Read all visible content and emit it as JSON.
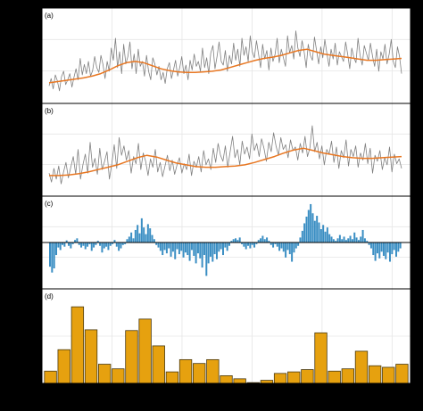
{
  "chart_data": [
    {
      "type": "line",
      "panel_label": "(a)",
      "title": "",
      "xlabel": "",
      "ylabel": "",
      "grid": true,
      "series": [
        {
          "color": "#808080",
          "values": [
            0.1,
            0.22,
            0.05,
            0.28,
            0.18,
            0.02,
            0.25,
            0.34,
            0.12,
            0.2,
            0.3,
            0.08,
            0.24,
            0.38,
            0.2,
            0.55,
            0.28,
            0.45,
            0.3,
            0.5,
            0.26,
            0.35,
            0.58,
            0.4,
            0.32,
            0.6,
            0.45,
            0.22,
            0.5,
            0.34,
            0.72,
            0.52,
            0.88,
            0.4,
            0.66,
            0.3,
            0.78,
            0.46,
            0.58,
            0.82,
            0.38,
            0.62,
            0.3,
            0.7,
            0.42,
            0.5,
            0.26,
            0.6,
            0.34,
            0.2,
            0.56,
            0.46,
            0.28,
            0.42,
            0.2,
            0.32,
            0.14,
            0.38,
            0.48,
            0.22,
            0.36,
            0.52,
            0.26,
            0.4,
            0.58,
            0.3,
            0.44,
            0.2,
            0.52,
            0.36,
            0.62,
            0.42,
            0.5,
            0.34,
            0.72,
            0.4,
            0.56,
            0.3,
            0.64,
            0.76,
            0.38,
            0.58,
            0.82,
            0.5,
            0.44,
            0.68,
            0.34,
            0.6,
            0.46,
            0.8,
            0.52,
            0.7,
            0.42,
            0.88,
            0.6,
            0.74,
            0.5,
            0.92,
            0.66,
            0.56,
            0.84,
            0.62,
            0.4,
            0.78,
            0.54,
            0.68,
            0.36,
            0.72,
            0.5,
            0.62,
            0.88,
            0.48,
            0.7,
            0.56,
            0.42,
            0.92,
            0.64,
            0.76,
            0.54,
            1.0,
            0.72,
            0.58,
            0.84,
            0.66,
            0.4,
            0.78,
            0.6,
            0.52,
            0.9,
            0.68,
            0.46,
            0.74,
            0.56,
            0.86,
            0.62,
            0.42,
            0.7,
            0.54,
            0.8,
            0.44,
            0.66,
            0.58,
            0.5,
            0.82,
            0.62,
            0.38,
            0.72,
            0.56,
            0.48,
            0.88,
            0.6,
            0.44,
            0.76,
            0.64,
            0.52,
            0.8,
            0.58,
            0.42,
            0.7,
            0.34,
            0.66,
            0.54,
            0.78,
            0.46,
            0.62,
            0.86,
            0.5,
            0.4,
            0.74,
            0.58,
            0.3
          ]
        },
        {
          "color": "#e87722",
          "values": [
            0.15,
            0.17,
            0.19,
            0.21,
            0.23,
            0.26,
            0.3,
            0.36,
            0.43,
            0.48,
            0.5,
            0.48,
            0.43,
            0.38,
            0.35,
            0.33,
            0.32,
            0.32,
            0.33,
            0.34,
            0.36,
            0.4,
            0.44,
            0.48,
            0.52,
            0.55,
            0.57,
            0.6,
            0.64,
            0.68,
            0.7,
            0.66,
            0.62,
            0.6,
            0.58,
            0.56,
            0.54,
            0.52,
            0.52,
            0.53,
            0.54,
            0.55
          ]
        }
      ]
    },
    {
      "type": "line",
      "panel_label": "(b)",
      "title": "",
      "xlabel": "",
      "ylabel": "",
      "grid": true,
      "series": [
        {
          "color": "#808080",
          "values": [
            0.2,
            0.05,
            0.28,
            0.1,
            0.32,
            0.02,
            0.22,
            0.38,
            0.12,
            0.3,
            0.48,
            0.18,
            0.6,
            0.1,
            0.34,
            0.52,
            0.2,
            0.72,
            0.3,
            0.45,
            0.18,
            0.62,
            0.26,
            0.4,
            0.56,
            0.1,
            0.36,
            0.68,
            0.28,
            0.8,
            0.5,
            0.66,
            0.42,
            0.58,
            0.2,
            0.48,
            0.36,
            0.7,
            0.26,
            0.54,
            0.4,
            0.16,
            0.44,
            0.3,
            0.6,
            0.22,
            0.38,
            0.14,
            0.32,
            0.5,
            0.24,
            0.42,
            0.18,
            0.34,
            0.46,
            0.2,
            0.36,
            0.26,
            0.52,
            0.16,
            0.4,
            0.3,
            0.48,
            0.22,
            0.58,
            0.34,
            0.44,
            0.26,
            0.62,
            0.38,
            0.7,
            0.5,
            0.4,
            0.66,
            0.3,
            0.56,
            0.82,
            0.46,
            0.6,
            0.34,
            0.74,
            0.52,
            0.64,
            0.44,
            0.86,
            0.58,
            0.7,
            0.48,
            0.78,
            0.62,
            0.4,
            0.72,
            0.56,
            0.88,
            0.66,
            0.5,
            0.8,
            0.6,
            0.68,
            0.46,
            0.76,
            0.58,
            0.64,
            0.42,
            0.7,
            0.54,
            0.82,
            0.48,
            0.62,
            1.0,
            0.56,
            0.72,
            0.44,
            0.66,
            0.34,
            0.6,
            0.52,
            0.74,
            0.38,
            0.64,
            0.28,
            0.58,
            0.46,
            0.76,
            0.32,
            0.6,
            0.48,
            0.66,
            0.3,
            0.54,
            0.42,
            0.7,
            0.36,
            0.62,
            0.2,
            0.5,
            0.4,
            0.58,
            0.26,
            0.46,
            0.34,
            0.64,
            0.22,
            0.52,
            0.36,
            0.44,
            0.28
          ]
        },
        {
          "color": "#e87722",
          "values": [
            0.16,
            0.16,
            0.17,
            0.19,
            0.22,
            0.26,
            0.3,
            0.34,
            0.4,
            0.46,
            0.5,
            0.47,
            0.42,
            0.37,
            0.34,
            0.31,
            0.3,
            0.3,
            0.31,
            0.32,
            0.34,
            0.38,
            0.43,
            0.48,
            0.54,
            0.59,
            0.62,
            0.58,
            0.54,
            0.51,
            0.48,
            0.46,
            0.45,
            0.45,
            0.46,
            0.47,
            0.48
          ]
        }
      ]
    },
    {
      "type": "bar",
      "panel_label": "(c)",
      "title": "",
      "xlabel": "",
      "ylabel": "",
      "grid": true,
      "color": "#3a8ec3",
      "baseline": 0,
      "values": [
        -0.58,
        -0.72,
        -0.62,
        -0.3,
        -0.12,
        -0.18,
        -0.06,
        -0.1,
        0.05,
        -0.08,
        -0.14,
        -0.04,
        0.06,
        0.1,
        -0.06,
        -0.12,
        -0.08,
        -0.16,
        -0.1,
        -0.04,
        -0.2,
        -0.12,
        -0.06,
        0.04,
        -0.08,
        -0.24,
        -0.14,
        -0.1,
        -0.18,
        -0.08,
        -0.04,
        0.06,
        -0.1,
        -0.2,
        -0.14,
        -0.06,
        -0.04,
        0.08,
        0.14,
        0.24,
        0.1,
        0.3,
        0.42,
        0.22,
        0.58,
        0.36,
        0.2,
        0.44,
        0.34,
        0.18,
        0.08,
        -0.06,
        -0.12,
        -0.2,
        -0.3,
        -0.18,
        -0.26,
        -0.14,
        -0.34,
        -0.22,
        -0.4,
        -0.16,
        -0.28,
        -0.2,
        -0.36,
        -0.24,
        -0.3,
        -0.44,
        -0.18,
        -0.32,
        -0.5,
        -0.26,
        -0.38,
        -0.6,
        -0.3,
        -0.8,
        -0.5,
        -0.34,
        -0.46,
        -0.28,
        -0.4,
        -0.22,
        -0.16,
        -0.3,
        -0.12,
        -0.2,
        -0.08,
        0.04,
        0.08,
        0.1,
        0.06,
        0.12,
        -0.04,
        -0.1,
        -0.16,
        -0.08,
        -0.14,
        -0.06,
        -0.12,
        -0.04,
        0.06,
        0.1,
        0.16,
        0.08,
        0.12,
        0.04,
        -0.06,
        -0.12,
        -0.04,
        -0.1,
        -0.2,
        -0.14,
        -0.22,
        -0.36,
        -0.18,
        -0.28,
        -0.46,
        -0.24,
        -0.14,
        -0.08,
        0.12,
        0.28,
        0.46,
        0.62,
        0.78,
        0.92,
        0.7,
        0.52,
        0.64,
        0.48,
        0.32,
        0.42,
        0.26,
        0.36,
        0.2,
        0.14,
        0.08,
        0.04,
        0.1,
        0.18,
        0.08,
        0.14,
        0.06,
        0.1,
        0.16,
        0.08,
        0.24,
        0.12,
        0.06,
        0.14,
        0.3,
        0.1,
        0.04,
        -0.06,
        -0.14,
        -0.3,
        -0.44,
        -0.26,
        -0.38,
        -0.22,
        -0.32,
        -0.4,
        -0.24,
        -0.46,
        -0.28,
        -0.18,
        -0.34,
        -0.22,
        -0.14
      ]
    },
    {
      "type": "bar",
      "panel_label": "(d)",
      "title": "",
      "xlabel": "",
      "ylabel": "",
      "grid": true,
      "color": "#e6a10f",
      "edgecolor": "#4a3a10",
      "values": [
        0.16,
        0.44,
        1.0,
        0.7,
        0.25,
        0.19,
        0.69,
        0.84,
        0.49,
        0.15,
        0.31,
        0.26,
        0.31,
        0.1,
        0.06,
        0.01,
        0.04,
        0.13,
        0.15,
        0.18,
        0.66,
        0.16,
        0.19,
        0.42,
        0.23,
        0.21,
        0.25
      ]
    }
  ]
}
